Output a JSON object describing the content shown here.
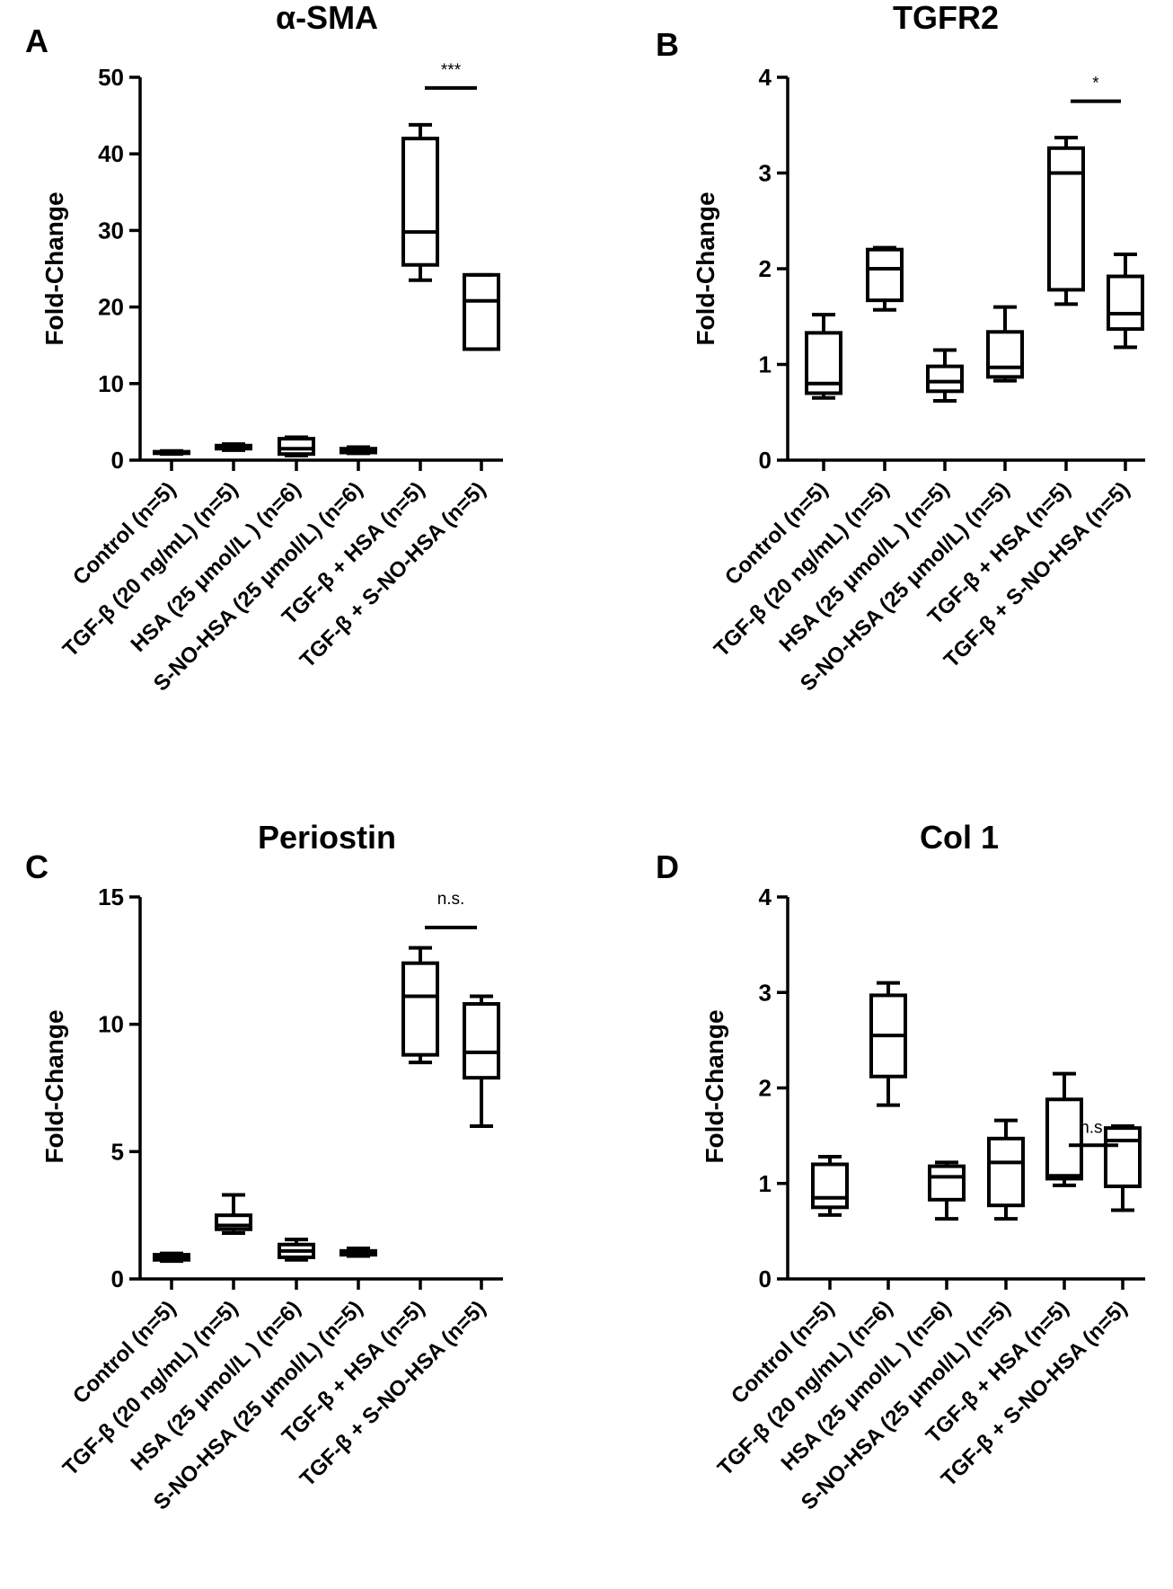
{
  "colors": {
    "ink": "#000000",
    "background": "#ffffff"
  },
  "chart_data": [
    {
      "type": "box",
      "panel": "A",
      "title": "α-SMA",
      "ylabel": "Fold-Change",
      "xlabel": "",
      "ylim": [
        0,
        50
      ],
      "yticks": [
        "0",
        "10",
        "20",
        "30",
        "40",
        "50"
      ],
      "categories": [
        "Control  (n=5)",
        "TGF-β (20 ng/mL) (n=5)",
        "HSA (25 μmol/L ) (n=6)",
        "S-NO-HSA (25 μmol/L) (n=6)",
        "TGF-β + HSA (n=5)",
        "TGF-β + S-NO-HSA  (n=5)"
      ],
      "boxes": [
        {
          "min": 0.8,
          "q1": 0.9,
          "median": 1.0,
          "q3": 1.1,
          "max": 1.2
        },
        {
          "min": 1.3,
          "q1": 1.5,
          "median": 1.7,
          "q3": 1.9,
          "max": 2.1
        },
        {
          "min": 0.6,
          "q1": 0.8,
          "median": 1.5,
          "q3": 2.8,
          "max": 3.0
        },
        {
          "min": 0.9,
          "q1": 1.0,
          "median": 1.2,
          "q3": 1.5,
          "max": 1.7
        },
        {
          "min": 23.5,
          "q1": 25.5,
          "median": 29.8,
          "q3": 42.0,
          "max": 43.8
        },
        {
          "min": 14.5,
          "q1": 14.5,
          "median": 20.8,
          "q3": 24.2,
          "max": 24.2
        }
      ],
      "significance": {
        "from": 4,
        "to": 5,
        "y": 48.6,
        "label": "***"
      }
    },
    {
      "type": "box",
      "panel": "B",
      "title": "TGFR2",
      "ylabel": "Fold-Change",
      "xlabel": "",
      "ylim": [
        0,
        4
      ],
      "yticks": [
        "0",
        "1",
        "2",
        "3",
        "4"
      ],
      "categories": [
        "Control (n=5)",
        "TGF-β (20 ng/mL) (n=5)",
        "HSA (25 μmol/L ) (n=5)",
        "S-NO-HSA (25 μmol/L) (n=5)",
        "TGF-β + HSA (n=5)",
        "TGF-β + S-NO-HSA (n=5)"
      ],
      "boxes": [
        {
          "min": 0.65,
          "q1": 0.7,
          "median": 0.8,
          "q3": 1.33,
          "max": 1.52
        },
        {
          "min": 1.57,
          "q1": 1.67,
          "median": 2.0,
          "q3": 2.2,
          "max": 2.22
        },
        {
          "min": 0.62,
          "q1": 0.72,
          "median": 0.82,
          "q3": 0.98,
          "max": 1.15
        },
        {
          "min": 0.83,
          "q1": 0.87,
          "median": 0.97,
          "q3": 1.34,
          "max": 1.6
        },
        {
          "min": 1.63,
          "q1": 1.78,
          "median": 3.0,
          "q3": 3.26,
          "max": 3.37
        },
        {
          "min": 1.18,
          "q1": 1.37,
          "median": 1.53,
          "q3": 1.92,
          "max": 2.15
        }
      ],
      "significance": {
        "from": 4,
        "to": 5,
        "y": 3.75,
        "label": "*"
      }
    },
    {
      "type": "box",
      "panel": "C",
      "title": "Periostin",
      "ylabel": "Fold-Change",
      "xlabel": "",
      "ylim": [
        0,
        15
      ],
      "yticks": [
        "0",
        "5",
        "10",
        "15"
      ],
      "categories": [
        "Control (n=5)",
        "TGF-β (20 ng/mL) (n=5)",
        "HSA (25 μmol/L ) (n=6)",
        "S-NO-HSA (25 μmol/L) (n=5)",
        "TGF-β + HSA  (n=5)",
        "TGF-β + S-NO-HSA  (n=5)"
      ],
      "boxes": [
        {
          "min": 0.7,
          "q1": 0.75,
          "median": 0.85,
          "q3": 0.95,
          "max": 1.0
        },
        {
          "min": 1.8,
          "q1": 1.95,
          "median": 2.1,
          "q3": 2.5,
          "max": 3.3
        },
        {
          "min": 0.75,
          "q1": 0.85,
          "median": 1.1,
          "q3": 1.35,
          "max": 1.55
        },
        {
          "min": 0.9,
          "q1": 0.95,
          "median": 1.0,
          "q3": 1.1,
          "max": 1.2
        },
        {
          "min": 8.5,
          "q1": 8.8,
          "median": 11.1,
          "q3": 12.4,
          "max": 13.0
        },
        {
          "min": 6.0,
          "q1": 7.9,
          "median": 8.9,
          "q3": 10.8,
          "max": 11.1
        }
      ],
      "significance": {
        "from": 4,
        "to": 5,
        "y": 13.8,
        "label": "n.s."
      }
    },
    {
      "type": "box",
      "panel": "D",
      "title": "Col 1",
      "ylabel": "Fold-Change",
      "xlabel": "",
      "ylim": [
        0,
        4
      ],
      "yticks": [
        "0",
        "1",
        "2",
        "3",
        "4"
      ],
      "categories": [
        "Control (n=5)",
        "TGF-β (20 ng/mL)  (n=6)",
        "HSA (25 μmol/L ) (n=6)",
        "S-NO-HSA (25 μmol/L) (n=5)",
        "TGF-β + HSA  (n=5)",
        "TGF-β + S-NO-HSA (n=5)"
      ],
      "boxes": [
        {
          "min": 0.67,
          "q1": 0.75,
          "median": 0.85,
          "q3": 1.2,
          "max": 1.28
        },
        {
          "min": 1.82,
          "q1": 2.12,
          "median": 2.55,
          "q3": 2.97,
          "max": 3.1
        },
        {
          "min": 0.63,
          "q1": 0.83,
          "median": 1.07,
          "q3": 1.18,
          "max": 1.22
        },
        {
          "min": 0.63,
          "q1": 0.77,
          "median": 1.22,
          "q3": 1.47,
          "max": 1.66
        },
        {
          "min": 0.98,
          "q1": 1.05,
          "median": 1.08,
          "q3": 1.88,
          "max": 2.15
        },
        {
          "min": 0.72,
          "q1": 0.97,
          "median": 1.45,
          "q3": 1.58,
          "max": 1.6
        }
      ],
      "significance": {
        "from": 4,
        "to": 5,
        "y": 1.4,
        "label": "n.s."
      }
    }
  ]
}
